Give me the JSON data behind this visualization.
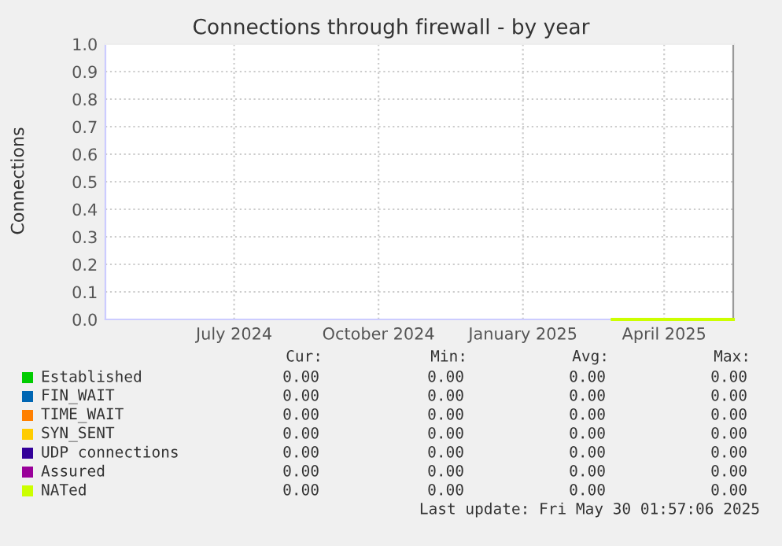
{
  "chart_data": {
    "type": "line",
    "title": "Connections through firewall - by year",
    "ylabel": "Connections",
    "x": [
      "2025-03-14",
      "2025-05-30"
    ],
    "series": [
      {
        "name": "Established",
        "color": "#00cc00",
        "values": [
          null,
          null
        ]
      },
      {
        "name": "FIN_WAIT",
        "color": "#0066b3",
        "values": [
          null,
          null
        ]
      },
      {
        "name": "TIME_WAIT",
        "color": "#ff8000",
        "values": [
          null,
          null
        ]
      },
      {
        "name": "SYN_SENT",
        "color": "#ffcc00",
        "values": [
          null,
          null
        ]
      },
      {
        "name": "UDP connections",
        "color": "#330099",
        "values": [
          null,
          null
        ]
      },
      {
        "name": "Assured",
        "color": "#990099",
        "values": [
          null,
          null
        ]
      },
      {
        "name": "NATed",
        "color": "#ccff00",
        "values": [
          0,
          0
        ]
      }
    ],
    "xlim": [
      "2024-04-25",
      "2025-05-30"
    ],
    "xticks": [
      {
        "value": "2024-07-16",
        "label": "July 2024"
      },
      {
        "value": "2024-10-16",
        "label": "October 2024"
      },
      {
        "value": "2025-01-16",
        "label": "January 2025"
      },
      {
        "value": "2025-04-16",
        "label": "April 2025"
      }
    ],
    "ylim": [
      0,
      1.0
    ],
    "yticks": [
      {
        "value": 0,
        "label": "0.0"
      },
      {
        "value": 0.1,
        "label": "0.1"
      },
      {
        "value": 0.2,
        "label": "0.2"
      },
      {
        "value": 0.3,
        "label": "0.3"
      },
      {
        "value": 0.4,
        "label": "0.4"
      },
      {
        "value": 0.5,
        "label": "0.5"
      },
      {
        "value": 0.6,
        "label": "0.6"
      },
      {
        "value": 0.7,
        "label": "0.7"
      },
      {
        "value": 0.8,
        "label": "0.8"
      },
      {
        "value": 0.9,
        "label": "0.9"
      },
      {
        "value": 1.0,
        "label": "1.0"
      }
    ],
    "grid": true,
    "legend": "bottom",
    "annotations": [
      "Cur:",
      "Min:",
      "Avg:",
      "Max:",
      "0.00",
      "0.00",
      "0.00",
      "0.00",
      "0.00",
      "0.00",
      "0.00",
      "0.00",
      "0.00",
      "0.00",
      "0.00",
      "0.00",
      "0.00",
      "0.00",
      "0.00",
      "0.00",
      "0.00",
      "0.00",
      "0.00",
      "0.00",
      "0.00",
      "0.00",
      "0.00",
      "0.00",
      "0.00",
      "0.00",
      "0.00",
      "0.00",
      "Last update: Fri May 30 01:57:06 2025"
    ]
  }
}
